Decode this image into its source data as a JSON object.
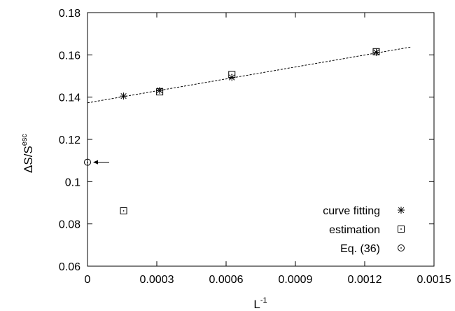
{
  "chart_data": {
    "type": "scatter",
    "xlabel": "L",
    "xlabel_sup": "-1",
    "ylabel": "ΔS/S",
    "ylabel_sup": "esc",
    "xlim": [
      0,
      0.0015
    ],
    "ylim": [
      0.06,
      0.18
    ],
    "x_ticks": [
      "0",
      "0.0003",
      "0.0006",
      "0.0009",
      "0.0012",
      "0.0015"
    ],
    "y_ticks": [
      "0.06",
      "0.08",
      "0.1",
      "0.12",
      "0.14",
      "0.16",
      "0.18"
    ],
    "legend_position": "bottom-right",
    "series": [
      {
        "name": "curve fitting",
        "marker": "asterisk",
        "x": [
          0.00015625,
          0.0003125,
          0.000625,
          0.00125
        ],
        "y": [
          0.1405,
          0.1432,
          0.1493,
          0.1612
        ]
      },
      {
        "name": "estimation",
        "marker": "square-dot",
        "x": [
          0.00015625,
          0.0003125,
          0.000625,
          0.00125
        ],
        "y": [
          0.0862,
          0.1425,
          0.1507,
          0.1615
        ]
      },
      {
        "name": "Eq. (36)",
        "marker": "circle-dot",
        "x": [
          0
        ],
        "y": [
          0.1092
        ]
      }
    ],
    "fit_line": {
      "style": "dashed",
      "x": [
        0,
        0.0014
      ],
      "y": [
        0.1373,
        0.1637
      ]
    },
    "annotation": {
      "type": "arrow",
      "points_to": {
        "x": 0,
        "y": 0.1092
      }
    }
  }
}
